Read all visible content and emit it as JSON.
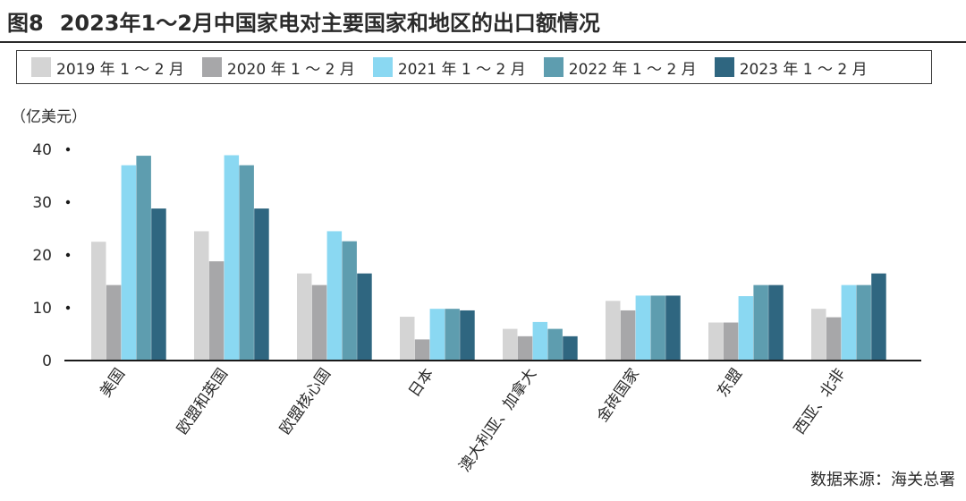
{
  "figure": {
    "label": "图8",
    "title": "2023年1～2月中国家电对主要国家和地区的出口额情况"
  },
  "unit": "（亿美元）",
  "source": "数据来源：海关总署",
  "colors": {
    "s2019": "#d4d4d4",
    "s2020": "#a7a7a9",
    "s2021": "#8ad8f2",
    "s2022": "#5e9daf",
    "s2023": "#2f6680"
  },
  "chart_data": {
    "type": "bar",
    "categories": [
      "美国",
      "欧盟和英国",
      "欧盟核心国",
      "日本",
      "澳大利亚、加拿大",
      "金砖国家",
      "东盟",
      "西亚、北非"
    ],
    "series": [
      {
        "name": "2019 年 1 ～ 2 月",
        "values": [
          22.5,
          24.5,
          16.5,
          8.3,
          6.0,
          11.3,
          7.2,
          9.8
        ]
      },
      {
        "name": "2020 年 1 ～ 2 月",
        "values": [
          14.3,
          18.8,
          14.3,
          4.0,
          4.6,
          9.5,
          7.2,
          8.2
        ]
      },
      {
        "name": "2021 年 1 ～ 2 月",
        "values": [
          37.0,
          38.9,
          24.5,
          9.8,
          7.3,
          12.3,
          12.2,
          14.3
        ]
      },
      {
        "name": "2022 年 1 ～ 2 月",
        "values": [
          38.8,
          37.0,
          22.6,
          9.8,
          6.0,
          12.3,
          14.3,
          14.3
        ]
      },
      {
        "name": "2023 年 1 ～ 2 月",
        "values": [
          28.8,
          28.8,
          16.5,
          9.5,
          4.6,
          12.3,
          14.3,
          16.5
        ]
      }
    ],
    "yticks": [
      0,
      10,
      20,
      30,
      40
    ],
    "ylim": [
      0,
      40
    ],
    "grid": false,
    "legend_position": "top"
  }
}
